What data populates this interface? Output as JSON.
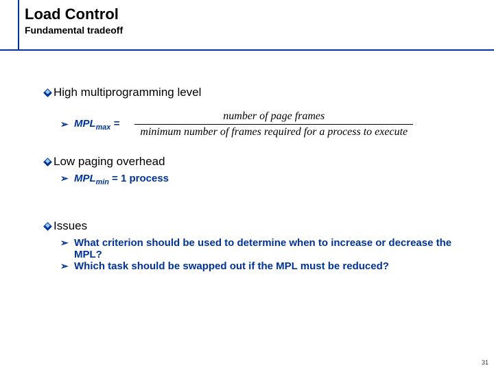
{
  "title": "Load Control",
  "subtitle": "Fundamental tradeoff",
  "colors": {
    "accent": "#003399",
    "bullet_inner": "#99ccff",
    "text": "#000000",
    "background": "#ffffff"
  },
  "sections": [
    {
      "heading": "High multiprogramming level",
      "formula": {
        "lhs": "MPL",
        "lhs_sub": "max",
        "eq": " = ",
        "numerator": "number of page frames",
        "denominator": "minimum number of frames required for a process to execute"
      }
    },
    {
      "heading": "Low paging overhead",
      "sub": [
        {
          "label": "MPL",
          "label_sub": "min",
          "rest": " = 1 process"
        }
      ]
    },
    {
      "heading": "Issues",
      "sub": [
        {
          "text": "What criterion should be used to determine when to increase or decrease the MPL?"
        },
        {
          "text": "Which task should be swapped out if the MPL must be reduced?"
        }
      ]
    }
  ],
  "page_number": "31",
  "typography": {
    "title_fontsize": 22,
    "subtitle_fontsize": 14,
    "body_fontsize": 17,
    "sub_fontsize": 15,
    "fraction_fontsize": 16
  }
}
